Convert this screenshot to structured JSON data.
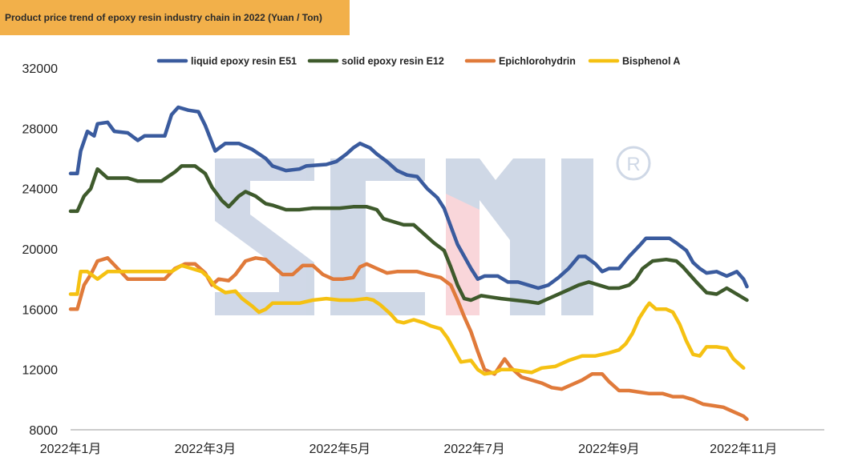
{
  "chart_data": {
    "type": "line",
    "title": "Product price trend of epoxy resin industry chain in 2022 (Yuan / Ton)",
    "xlabel": "",
    "ylabel": "",
    "ylim": [
      8000,
      32000
    ],
    "y_ticks": [
      8000,
      12000,
      16000,
      20000,
      24000,
      28000,
      32000
    ],
    "x_range_months": [
      1,
      12.2
    ],
    "x_ticks": [
      {
        "label": "2022年1月",
        "month": 1
      },
      {
        "label": "2022年3月",
        "month": 3
      },
      {
        "label": "2022年5月",
        "month": 5
      },
      {
        "label": "2022年7月",
        "month": 7
      },
      {
        "label": "2022年9月",
        "month": 9
      },
      {
        "label": "2022年11月",
        "month": 11
      }
    ],
    "grid": false,
    "legend_position": "top",
    "watermark": "SCMI ®",
    "series": [
      {
        "name": "liquid epoxy resin E51",
        "color": "#3A5B9E",
        "points": [
          [
            1.0,
            25000
          ],
          [
            1.1,
            25000
          ],
          [
            1.15,
            26500
          ],
          [
            1.25,
            27800
          ],
          [
            1.35,
            27500
          ],
          [
            1.4,
            28300
          ],
          [
            1.55,
            28400
          ],
          [
            1.65,
            27800
          ],
          [
            1.85,
            27700
          ],
          [
            2.0,
            27200
          ],
          [
            2.1,
            27500
          ],
          [
            2.4,
            27500
          ],
          [
            2.5,
            28900
          ],
          [
            2.6,
            29400
          ],
          [
            2.75,
            29200
          ],
          [
            2.9,
            29100
          ],
          [
            3.0,
            28200
          ],
          [
            3.15,
            26500
          ],
          [
            3.3,
            27000
          ],
          [
            3.5,
            27000
          ],
          [
            3.7,
            26600
          ],
          [
            3.9,
            26000
          ],
          [
            4.0,
            25500
          ],
          [
            4.2,
            25200
          ],
          [
            4.4,
            25300
          ],
          [
            4.5,
            25500
          ],
          [
            4.8,
            25600
          ],
          [
            4.95,
            25800
          ],
          [
            5.1,
            26300
          ],
          [
            5.2,
            26700
          ],
          [
            5.3,
            27000
          ],
          [
            5.45,
            26700
          ],
          [
            5.55,
            26300
          ],
          [
            5.7,
            25800
          ],
          [
            5.85,
            25200
          ],
          [
            6.0,
            24900
          ],
          [
            6.15,
            24800
          ],
          [
            6.3,
            24000
          ],
          [
            6.45,
            23400
          ],
          [
            6.55,
            22700
          ],
          [
            6.65,
            21500
          ],
          [
            6.75,
            20300
          ],
          [
            6.85,
            19500
          ],
          [
            6.95,
            18700
          ],
          [
            7.05,
            18000
          ],
          [
            7.15,
            18200
          ],
          [
            7.35,
            18200
          ],
          [
            7.5,
            17800
          ],
          [
            7.65,
            17800
          ],
          [
            7.8,
            17600
          ],
          [
            7.95,
            17400
          ],
          [
            8.1,
            17600
          ],
          [
            8.25,
            18100
          ],
          [
            8.4,
            18700
          ],
          [
            8.55,
            19500
          ],
          [
            8.65,
            19500
          ],
          [
            8.8,
            19000
          ],
          [
            8.9,
            18500
          ],
          [
            9.0,
            18700
          ],
          [
            9.15,
            18700
          ],
          [
            9.3,
            19500
          ],
          [
            9.45,
            20200
          ],
          [
            9.55,
            20700
          ],
          [
            9.75,
            20700
          ],
          [
            9.9,
            20700
          ],
          [
            10.0,
            20400
          ],
          [
            10.15,
            19900
          ],
          [
            10.25,
            19100
          ],
          [
            10.35,
            18700
          ],
          [
            10.45,
            18400
          ],
          [
            10.6,
            18500
          ],
          [
            10.75,
            18200
          ],
          [
            10.9,
            18500
          ],
          [
            11.0,
            18000
          ],
          [
            11.05,
            17500
          ]
        ]
      },
      {
        "name": "solid epoxy resin E12",
        "color": "#3E5A2C",
        "points": [
          [
            1.0,
            22500
          ],
          [
            1.1,
            22500
          ],
          [
            1.2,
            23500
          ],
          [
            1.3,
            24000
          ],
          [
            1.4,
            25300
          ],
          [
            1.55,
            24700
          ],
          [
            1.7,
            24700
          ],
          [
            1.85,
            24700
          ],
          [
            2.0,
            24500
          ],
          [
            2.2,
            24500
          ],
          [
            2.35,
            24500
          ],
          [
            2.55,
            25100
          ],
          [
            2.65,
            25500
          ],
          [
            2.85,
            25500
          ],
          [
            3.0,
            25000
          ],
          [
            3.1,
            24100
          ],
          [
            3.25,
            23200
          ],
          [
            3.35,
            22800
          ],
          [
            3.5,
            23500
          ],
          [
            3.6,
            23800
          ],
          [
            3.75,
            23500
          ],
          [
            3.9,
            23000
          ],
          [
            4.0,
            22900
          ],
          [
            4.2,
            22600
          ],
          [
            4.4,
            22600
          ],
          [
            4.6,
            22700
          ],
          [
            4.8,
            22700
          ],
          [
            5.0,
            22700
          ],
          [
            5.2,
            22800
          ],
          [
            5.4,
            22800
          ],
          [
            5.55,
            22600
          ],
          [
            5.65,
            22000
          ],
          [
            5.8,
            21800
          ],
          [
            5.95,
            21600
          ],
          [
            6.1,
            21600
          ],
          [
            6.25,
            21000
          ],
          [
            6.4,
            20400
          ],
          [
            6.55,
            19900
          ],
          [
            6.65,
            18800
          ],
          [
            6.75,
            17600
          ],
          [
            6.85,
            16700
          ],
          [
            6.95,
            16600
          ],
          [
            7.1,
            16900
          ],
          [
            7.25,
            16800
          ],
          [
            7.4,
            16700
          ],
          [
            7.6,
            16600
          ],
          [
            7.8,
            16500
          ],
          [
            7.95,
            16400
          ],
          [
            8.05,
            16600
          ],
          [
            8.2,
            16900
          ],
          [
            8.4,
            17300
          ],
          [
            8.55,
            17600
          ],
          [
            8.7,
            17800
          ],
          [
            8.85,
            17600
          ],
          [
            9.0,
            17400
          ],
          [
            9.15,
            17400
          ],
          [
            9.3,
            17600
          ],
          [
            9.4,
            18000
          ],
          [
            9.5,
            18700
          ],
          [
            9.65,
            19200
          ],
          [
            9.85,
            19300
          ],
          [
            10.0,
            19200
          ],
          [
            10.1,
            18800
          ],
          [
            10.2,
            18300
          ],
          [
            10.3,
            17800
          ],
          [
            10.45,
            17100
          ],
          [
            10.6,
            17000
          ],
          [
            10.75,
            17400
          ],
          [
            10.9,
            17000
          ],
          [
            11.05,
            16600
          ]
        ]
      },
      {
        "name": "Epichlorohydrin",
        "color": "#E07A3A",
        "points": [
          [
            1.0,
            16000
          ],
          [
            1.1,
            16000
          ],
          [
            1.2,
            17600
          ],
          [
            1.3,
            18300
          ],
          [
            1.4,
            19200
          ],
          [
            1.55,
            19400
          ],
          [
            1.7,
            18700
          ],
          [
            1.85,
            18000
          ],
          [
            2.0,
            18000
          ],
          [
            2.2,
            18000
          ],
          [
            2.4,
            18000
          ],
          [
            2.55,
            18700
          ],
          [
            2.7,
            19000
          ],
          [
            2.85,
            19000
          ],
          [
            3.0,
            18400
          ],
          [
            3.1,
            17600
          ],
          [
            3.2,
            18000
          ],
          [
            3.35,
            17900
          ],
          [
            3.45,
            18300
          ],
          [
            3.6,
            19200
          ],
          [
            3.75,
            19400
          ],
          [
            3.9,
            19300
          ],
          [
            4.0,
            18900
          ],
          [
            4.15,
            18300
          ],
          [
            4.3,
            18300
          ],
          [
            4.45,
            18900
          ],
          [
            4.6,
            18900
          ],
          [
            4.75,
            18300
          ],
          [
            4.9,
            18000
          ],
          [
            5.05,
            18000
          ],
          [
            5.2,
            18100
          ],
          [
            5.3,
            18800
          ],
          [
            5.4,
            19000
          ],
          [
            5.55,
            18700
          ],
          [
            5.7,
            18400
          ],
          [
            5.85,
            18500
          ],
          [
            6.0,
            18500
          ],
          [
            6.15,
            18500
          ],
          [
            6.3,
            18300
          ],
          [
            6.5,
            18100
          ],
          [
            6.65,
            17600
          ],
          [
            6.75,
            16600
          ],
          [
            6.85,
            15500
          ],
          [
            6.95,
            14500
          ],
          [
            7.05,
            13200
          ],
          [
            7.15,
            12000
          ],
          [
            7.3,
            11700
          ],
          [
            7.45,
            12700
          ],
          [
            7.55,
            12100
          ],
          [
            7.7,
            11500
          ],
          [
            7.85,
            11300
          ],
          [
            8.0,
            11100
          ],
          [
            8.15,
            10800
          ],
          [
            8.3,
            10700
          ],
          [
            8.45,
            11000
          ],
          [
            8.6,
            11300
          ],
          [
            8.75,
            11700
          ],
          [
            8.9,
            11700
          ],
          [
            9.0,
            11200
          ],
          [
            9.15,
            10600
          ],
          [
            9.3,
            10600
          ],
          [
            9.45,
            10500
          ],
          [
            9.6,
            10400
          ],
          [
            9.8,
            10400
          ],
          [
            9.95,
            10200
          ],
          [
            10.1,
            10200
          ],
          [
            10.25,
            10000
          ],
          [
            10.4,
            9700
          ],
          [
            10.55,
            9600
          ],
          [
            10.7,
            9500
          ],
          [
            10.85,
            9200
          ],
          [
            11.0,
            8900
          ],
          [
            11.05,
            8700
          ]
        ]
      },
      {
        "name": "Bisphenol A",
        "color": "#F5C112",
        "points": [
          [
            1.0,
            17000
          ],
          [
            1.1,
            17000
          ],
          [
            1.15,
            18500
          ],
          [
            1.25,
            18500
          ],
          [
            1.4,
            18000
          ],
          [
            1.55,
            18500
          ],
          [
            1.7,
            18500
          ],
          [
            1.9,
            18500
          ],
          [
            2.1,
            18500
          ],
          [
            2.3,
            18500
          ],
          [
            2.5,
            18500
          ],
          [
            2.65,
            18900
          ],
          [
            2.8,
            18700
          ],
          [
            2.95,
            18500
          ],
          [
            3.05,
            18100
          ],
          [
            3.15,
            17500
          ],
          [
            3.3,
            17100
          ],
          [
            3.45,
            17200
          ],
          [
            3.55,
            16700
          ],
          [
            3.7,
            16200
          ],
          [
            3.8,
            15800
          ],
          [
            3.9,
            16000
          ],
          [
            4.0,
            16400
          ],
          [
            4.2,
            16400
          ],
          [
            4.4,
            16400
          ],
          [
            4.6,
            16600
          ],
          [
            4.8,
            16700
          ],
          [
            5.0,
            16600
          ],
          [
            5.2,
            16600
          ],
          [
            5.4,
            16700
          ],
          [
            5.5,
            16600
          ],
          [
            5.6,
            16300
          ],
          [
            5.75,
            15700
          ],
          [
            5.85,
            15200
          ],
          [
            5.95,
            15100
          ],
          [
            6.1,
            15300
          ],
          [
            6.25,
            15100
          ],
          [
            6.35,
            14900
          ],
          [
            6.5,
            14700
          ],
          [
            6.6,
            14100
          ],
          [
            6.7,
            13300
          ],
          [
            6.8,
            12500
          ],
          [
            6.95,
            12600
          ],
          [
            7.05,
            12000
          ],
          [
            7.15,
            11700
          ],
          [
            7.3,
            11800
          ],
          [
            7.4,
            12000
          ],
          [
            7.55,
            12000
          ],
          [
            7.7,
            11900
          ],
          [
            7.85,
            11800
          ],
          [
            8.0,
            12100
          ],
          [
            8.2,
            12200
          ],
          [
            8.4,
            12600
          ],
          [
            8.6,
            12900
          ],
          [
            8.8,
            12900
          ],
          [
            9.0,
            13100
          ],
          [
            9.15,
            13300
          ],
          [
            9.25,
            13700
          ],
          [
            9.35,
            14400
          ],
          [
            9.45,
            15400
          ],
          [
            9.55,
            16100
          ],
          [
            9.6,
            16400
          ],
          [
            9.7,
            16000
          ],
          [
            9.85,
            16000
          ],
          [
            9.95,
            15800
          ],
          [
            10.05,
            15000
          ],
          [
            10.15,
            13900
          ],
          [
            10.25,
            13000
          ],
          [
            10.35,
            12900
          ],
          [
            10.45,
            13500
          ],
          [
            10.6,
            13500
          ],
          [
            10.75,
            13400
          ],
          [
            10.85,
            12700
          ],
          [
            11.0,
            12100
          ]
        ]
      }
    ]
  }
}
